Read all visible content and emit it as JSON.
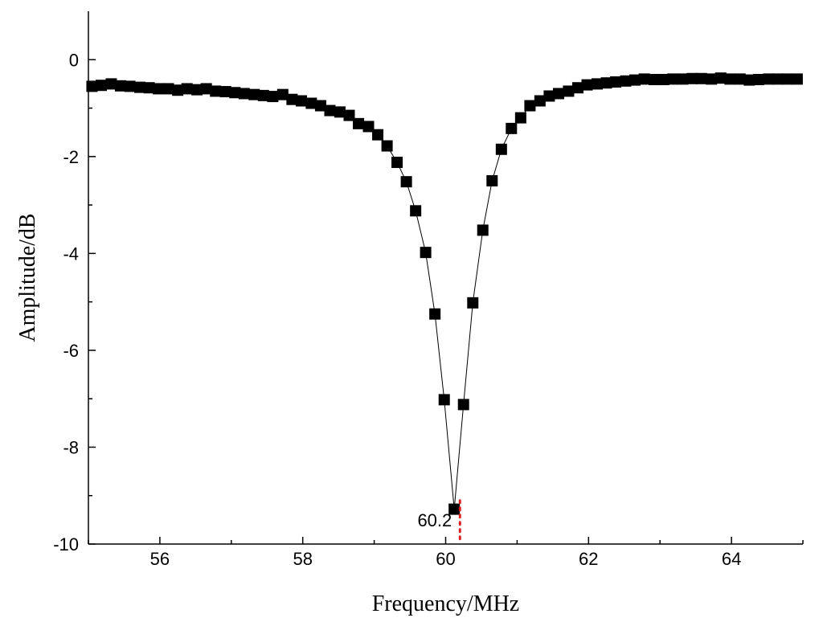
{
  "chart_data": {
    "type": "line",
    "xlabel": "Frequency/MHz",
    "ylabel": "Amplitude/dB",
    "xlim": [
      55,
      65
    ],
    "ylim": [
      -10,
      1
    ],
    "x_ticks": [
      56,
      58,
      60,
      62,
      64
    ],
    "x_tick_labels": [
      "56",
      "58",
      "60",
      "62",
      "64"
    ],
    "y_ticks": [
      0,
      -2,
      -4,
      -6,
      -8,
      -10
    ],
    "y_tick_labels": [
      "0",
      "-2",
      "-4",
      "-6",
      "-8",
      "-10"
    ],
    "grid": false,
    "legend": "none",
    "marker": "square",
    "colors": {
      "series": "#000000",
      "marker_line": "#e02020"
    },
    "annotation": {
      "text": "60.2",
      "x": 60.2,
      "y": -9.3
    },
    "series": [
      {
        "x": [
          55.05,
          55.18,
          55.32,
          55.45,
          55.58,
          55.72,
          55.85,
          55.98,
          56.12,
          56.25,
          56.38,
          56.52,
          56.65,
          56.78,
          56.92,
          57.05,
          57.18,
          57.32,
          57.45,
          57.58,
          57.72,
          57.85,
          57.98,
          58.12,
          58.25,
          58.38,
          58.52,
          58.65,
          58.78,
          58.92,
          59.05,
          59.18,
          59.32,
          59.45,
          59.58,
          59.72,
          59.85,
          59.98,
          60.12,
          60.25,
          60.38,
          60.52,
          60.65,
          60.78,
          60.92,
          61.05,
          61.18,
          61.32,
          61.45,
          61.58,
          61.72,
          61.85,
          61.98,
          62.12,
          62.25,
          62.38,
          62.52,
          62.65,
          62.78,
          62.92,
          63.05,
          63.18,
          63.32,
          63.45,
          63.58,
          63.72,
          63.85,
          63.98,
          64.12,
          64.25,
          64.38,
          64.52,
          64.65,
          64.78,
          64.92
        ],
        "y": [
          -0.55,
          -0.53,
          -0.5,
          -0.54,
          -0.55,
          -0.57,
          -0.58,
          -0.6,
          -0.6,
          -0.63,
          -0.6,
          -0.62,
          -0.6,
          -0.65,
          -0.66,
          -0.68,
          -0.7,
          -0.72,
          -0.74,
          -0.76,
          -0.72,
          -0.82,
          -0.85,
          -0.9,
          -0.95,
          -1.05,
          -1.08,
          -1.15,
          -1.32,
          -1.38,
          -1.55,
          -1.78,
          -2.12,
          -2.52,
          -3.12,
          -3.98,
          -5.25,
          -7.02,
          -9.28,
          -7.12,
          -5.02,
          -3.52,
          -2.5,
          -1.85,
          -1.42,
          -1.2,
          -0.95,
          -0.85,
          -0.75,
          -0.7,
          -0.65,
          -0.58,
          -0.52,
          -0.5,
          -0.48,
          -0.46,
          -0.44,
          -0.42,
          -0.4,
          -0.41,
          -0.41,
          -0.4,
          -0.4,
          -0.39,
          -0.39,
          -0.4,
          -0.38,
          -0.4,
          -0.4,
          -0.42,
          -0.41,
          -0.4,
          -0.4,
          -0.4,
          -0.4
        ]
      }
    ]
  }
}
